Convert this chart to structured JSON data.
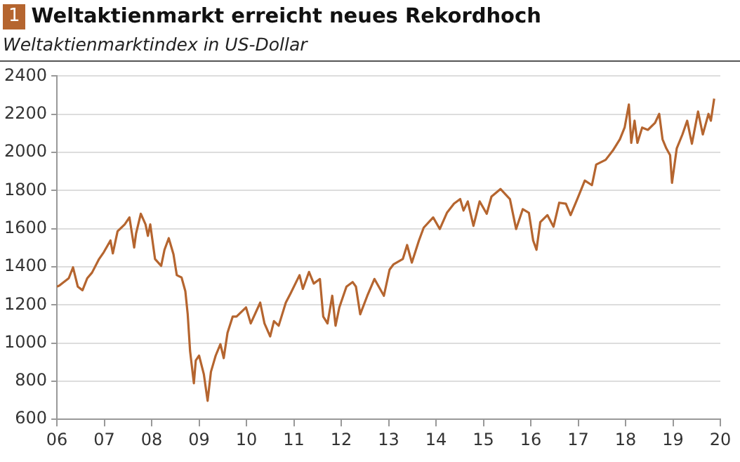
{
  "chart_data": {
    "type": "line",
    "title": "Weltaktienmarkt erreicht neues Rekordhoch",
    "subtitle": "Weltaktienmarktindex in US-Dollar",
    "annotations": [
      "1"
    ],
    "x": [
      2006,
      2006.05,
      2006.25,
      2006.34,
      2006.44,
      2006.54,
      2006.64,
      2006.74,
      2006.89,
      2006.99,
      2007.13,
      2007.18,
      2007.28,
      2007.43,
      2007.53,
      2007.63,
      2007.67,
      2007.77,
      2007.87,
      2007.92,
      2007.97,
      2008.07,
      2008.2,
      2008.27,
      2008.36,
      2008.46,
      2008.53,
      2008.63,
      2008.71,
      2008.76,
      2008.81,
      2008.89,
      2008.93,
      2009,
      2009.1,
      2009.18,
      2009.25,
      2009.35,
      2009.45,
      2009.52,
      2009.6,
      2009.71,
      2009.79,
      2009.99,
      2010.09,
      2010.29,
      2010.38,
      2010.5,
      2010.58,
      2010.68,
      2010.83,
      2010.93,
      2011.12,
      2011.19,
      2011.32,
      2011.42,
      2011.55,
      2011.62,
      2011.71,
      2011.81,
      2011.88,
      2011.96,
      2012.11,
      2012.24,
      2012.31,
      2012.4,
      2012.55,
      2012.7,
      2012.9,
      2013.02,
      2013.1,
      2013.3,
      2013.39,
      2013.49,
      2013.64,
      2013.74,
      2013.94,
      2014.08,
      2014.23,
      2014.38,
      2014.51,
      2014.58,
      2014.67,
      2014.79,
      2014.92,
      2015.07,
      2015.17,
      2015.36,
      2015.56,
      2015.69,
      2015.83,
      2015.96,
      2016.05,
      2016.12,
      2016.2,
      2016.35,
      2016.48,
      2016.6,
      2016.74,
      2016.84,
      2016.99,
      2017.14,
      2017.29,
      2017.38,
      2017.58,
      2017.73,
      2017.88,
      2017.98,
      2018.07,
      2018.12,
      2018.19,
      2018.25,
      2018.35,
      2018.47,
      2018.62,
      2018.71,
      2018.78,
      2018.86,
      2018.94,
      2018.98,
      2019.08,
      2019.2,
      2019.3,
      2019.4,
      2019.53,
      2019.63,
      2019.75,
      2019.8,
      2019.87
    ],
    "series": [
      {
        "color": "#b5652f",
        "values": [
          1296,
          1301,
          1340,
          1397,
          1296,
          1277,
          1340,
          1369,
          1441,
          1477,
          1538,
          1470,
          1586,
          1622,
          1659,
          1501,
          1574,
          1678,
          1622,
          1562,
          1622,
          1441,
          1405,
          1489,
          1550,
          1465,
          1356,
          1344,
          1272,
          1151,
          958,
          789,
          909,
          934,
          837,
          697,
          849,
          934,
          994,
          921,
          1054,
          1139,
          1139,
          1187,
          1103,
          1212,
          1103,
          1035,
          1115,
          1091,
          1212,
          1260,
          1356,
          1284,
          1373,
          1312,
          1336,
          1139,
          1103,
          1248,
          1091,
          1187,
          1296,
          1320,
          1296,
          1151,
          1248,
          1336,
          1248,
          1385,
          1412,
          1441,
          1514,
          1422,
          1538,
          1605,
          1659,
          1598,
          1683,
          1731,
          1755,
          1695,
          1743,
          1615,
          1743,
          1678,
          1768,
          1808,
          1755,
          1598,
          1702,
          1683,
          1538,
          1489,
          1634,
          1671,
          1610,
          1736,
          1731,
          1671,
          1760,
          1852,
          1828,
          1936,
          1961,
          2009,
          2069,
          2130,
          2251,
          2050,
          2166,
          2050,
          2130,
          2118,
          2154,
          2202,
          2069,
          2021,
          1985,
          1840,
          2021,
          2094,
          2166,
          2045,
          2214,
          2094,
          2202,
          2166,
          2282
        ]
      }
    ],
    "xlim": [
      2006,
      2020
    ],
    "xticks": [
      {
        "value": 2006,
        "label": "06"
      },
      {
        "value": 2007,
        "label": "07"
      },
      {
        "value": 2008,
        "label": "08"
      },
      {
        "value": 2009,
        "label": "09"
      },
      {
        "value": 2010,
        "label": "10"
      },
      {
        "value": 2011,
        "label": "11"
      },
      {
        "value": 2012,
        "label": "12"
      },
      {
        "value": 2013,
        "label": "13"
      },
      {
        "value": 2014,
        "label": "14"
      },
      {
        "value": 2015,
        "label": "15"
      },
      {
        "value": 2016,
        "label": "16"
      },
      {
        "value": 2017,
        "label": "17"
      },
      {
        "value": 2018,
        "label": "18"
      },
      {
        "value": 2019,
        "label": "19"
      },
      {
        "value": 2020,
        "label": "20"
      }
    ],
    "ylim": [
      600,
      2400
    ],
    "yticks": [
      600,
      800,
      1000,
      1200,
      1400,
      1600,
      1800,
      2000,
      2200,
      2400
    ],
    "grid": "y",
    "legend": false,
    "marker": "none",
    "line_style": "solid"
  }
}
